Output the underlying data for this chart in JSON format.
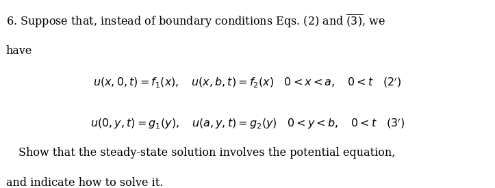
{
  "background_color": "#ffffff",
  "figsize": [
    7.23,
    2.75
  ],
  "dpi": 100,
  "font_size_header": 11.5,
  "font_size_math": 11.5,
  "font_size_footer": 11.5,
  "text_color": "#000000",
  "header1": "6. Suppose that, instead of boundary conditions Eqs. (2) and $\\overline{(3)}$, we",
  "header2": "have",
  "math_line1": "$u(x, 0, t) = f_1(x), \\quad u(x, b, t) = f_2(x) \\quad 0 < x < a, \\quad 0 < t  \\quad (2')$",
  "math_line2": "$u(0, y, t) = g_1(y), \\quad u(a, y, t) = g_2(y) \\quad 0 < y < b, \\quad 0 < t  \\quad (3')$",
  "footer1": "Show that the steady-state solution involves the potential equation,",
  "footer2": "and indicate how to solve it."
}
